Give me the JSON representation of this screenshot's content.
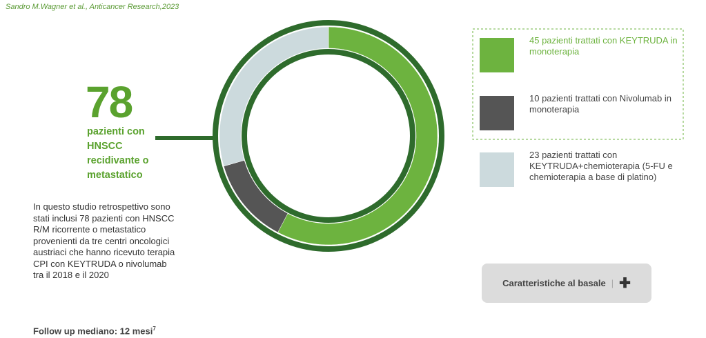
{
  "citation": "Sandro M.Wagner et al., Anticancer Research,2023",
  "chart_data": {
    "type": "donut",
    "total": "78",
    "total_caption": "pazienti con HNSCC recidivante o metastatico",
    "categories": [
      "45 pazienti trattati con KEYTRUDA in monoterapia",
      "10 pazienti trattati con Nivolumab in monoterapia",
      "23 pazienti trattati con KEYTRUDA+chemioterapia (5-FU e chemioterapia a base di platino)"
    ],
    "values": [
      45,
      10,
      23
    ],
    "colors": [
      "#6db33f",
      "#555555",
      "#ccdadd"
    ]
  },
  "description": "In questo studio retrospettivo sono stati inclusi 78 pazienti con HNSCC R/M ricorrente o metastatico provenienti da tre centri oncologici austriaci che hanno ricevuto terapia CPI con KEYTRUDA o nivolumab tra il 2018 e il 2020",
  "follow_up": "Follow up mediano: 12 mesi",
  "follow_up_ref": "7",
  "button": {
    "label": "Caratteristiche al basale"
  }
}
